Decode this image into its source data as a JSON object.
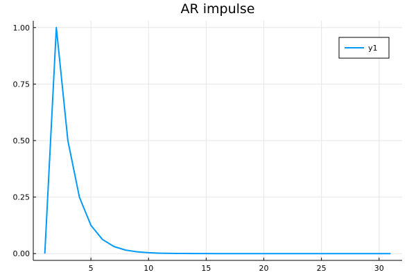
{
  "chart_data": {
    "type": "line",
    "title": "AR impulse",
    "xlabel": "",
    "ylabel": "",
    "xlim": [
      0.0,
      32.0
    ],
    "ylim": [
      -0.03,
      1.03
    ],
    "x_ticks": [
      5,
      10,
      15,
      20,
      25,
      30
    ],
    "x_tick_labels": [
      "5",
      "10",
      "15",
      "20",
      "25",
      "30"
    ],
    "y_ticks": [
      0.0,
      0.25,
      0.5,
      0.75,
      1.0
    ],
    "y_tick_labels": [
      "0.00",
      "0.25",
      "0.50",
      "0.75",
      "1.00"
    ],
    "grid": true,
    "legend": {
      "position": "top-right"
    },
    "series": [
      {
        "name": "y1",
        "color": "#009af9",
        "x": [
          1,
          2,
          3,
          4,
          5,
          6,
          7,
          8,
          9,
          10,
          11,
          12,
          13,
          14,
          15,
          16,
          17,
          18,
          19,
          20,
          21,
          22,
          23,
          24,
          25,
          26,
          27,
          28,
          29,
          30,
          31
        ],
        "y": [
          0.0,
          1.0,
          0.5,
          0.25,
          0.125,
          0.0625,
          0.03125,
          0.015625,
          0.0078125,
          0.00390625,
          0.001953125,
          0.0009765625,
          0.00048828125,
          0.000244140625,
          0.0001220703125,
          6.103515625e-05,
          3.0517578125e-05,
          1.52587890625e-05,
          7.62939453125e-06,
          3.814697265625e-06,
          1.9073486328125e-06,
          9.5367431640625e-07,
          4.76837158203125e-07,
          2.384185791015625e-07,
          1.1920928955078125e-07,
          5.960464477539063e-08,
          2.9802322387695312e-08,
          1.4901161193847656e-08,
          7.450580596923828e-09,
          3.725290298461914e-09,
          1.862645149230957e-09
        ]
      }
    ]
  }
}
